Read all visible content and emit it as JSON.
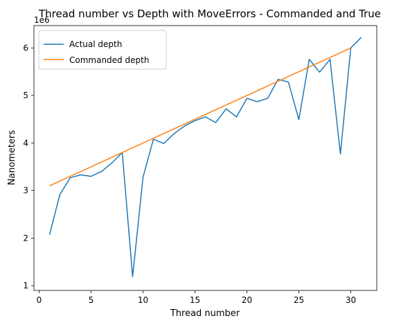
{
  "chart_data": {
    "type": "line",
    "title": "Thread number vs Depth with MoveErrors - Commanded and True",
    "xlabel": "Thread number",
    "ylabel": "Nanometers",
    "y_offset_label": "1e6",
    "y_multiplier": 1000000,
    "xlim": [
      -0.5,
      32.5
    ],
    "ylim": [
      900000,
      6470000
    ],
    "x_ticks": [
      0,
      5,
      10,
      15,
      20,
      25,
      30
    ],
    "y_ticks": [
      1,
      2,
      3,
      4,
      5,
      6
    ],
    "grid": false,
    "legend_placement": "top-left",
    "series": [
      {
        "name": "Actual depth",
        "color": "#1f77b4",
        "x": [
          1,
          2,
          3,
          4,
          5,
          6,
          7,
          8,
          9,
          10,
          11,
          12,
          13,
          14,
          15,
          16,
          17,
          18,
          19,
          20,
          21,
          22,
          23,
          24,
          25,
          26,
          27,
          28,
          29,
          30,
          31
        ],
        "y": [
          2070000,
          2920000,
          3270000,
          3330000,
          3300000,
          3400000,
          3580000,
          3800000,
          1190000,
          3280000,
          4080000,
          3990000,
          4200000,
          4360000,
          4470000,
          4550000,
          4430000,
          4720000,
          4550000,
          4940000,
          4870000,
          4940000,
          5340000,
          5280000,
          4490000,
          5760000,
          5490000,
          5760000,
          3770000,
          6000000,
          6220000
        ]
      },
      {
        "name": "Commanded depth",
        "color": "#ff7f0e",
        "x": [
          1,
          30
        ],
        "y": [
          3100000,
          6000000
        ]
      }
    ]
  }
}
